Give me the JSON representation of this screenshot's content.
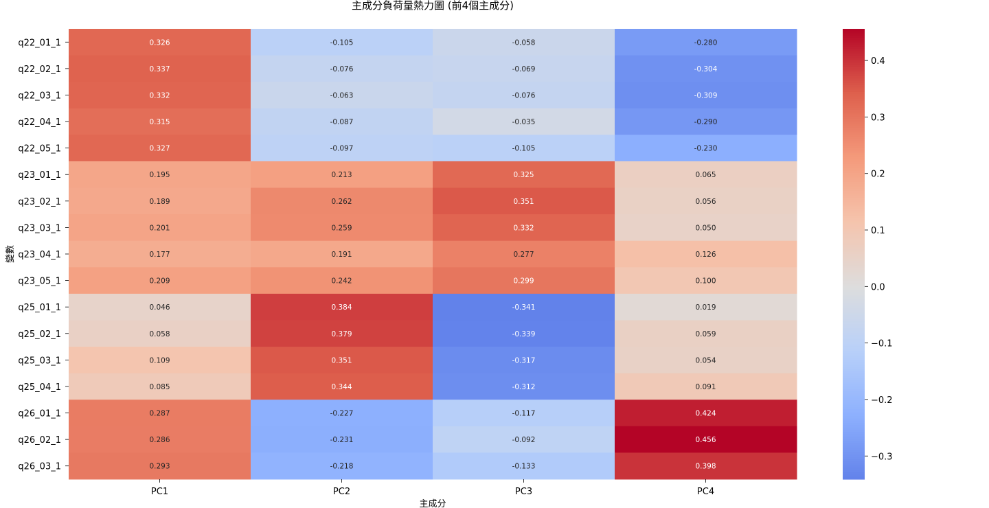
{
  "chart_data": {
    "type": "heatmap",
    "title": "主成分負荷量熱力圖 (前4個主成分)",
    "xlabel": "主成分",
    "ylabel": "變數",
    "x_categories": [
      "PC1",
      "PC2",
      "PC3",
      "PC4"
    ],
    "y_categories": [
      "q22_01_1",
      "q22_02_1",
      "q22_03_1",
      "q22_04_1",
      "q22_05_1",
      "q23_01_1",
      "q23_02_1",
      "q23_03_1",
      "q23_04_1",
      "q23_05_1",
      "q25_01_1",
      "q25_02_1",
      "q25_03_1",
      "q25_04_1",
      "q26_01_1",
      "q26_02_1",
      "q26_03_1"
    ],
    "values": [
      [
        0.326,
        -0.105,
        -0.058,
        -0.28
      ],
      [
        0.337,
        -0.076,
        -0.069,
        -0.304
      ],
      [
        0.332,
        -0.063,
        -0.076,
        -0.309
      ],
      [
        0.315,
        -0.087,
        -0.035,
        -0.29
      ],
      [
        0.327,
        -0.097,
        -0.105,
        -0.23
      ],
      [
        0.195,
        0.213,
        0.325,
        0.065
      ],
      [
        0.189,
        0.262,
        0.351,
        0.056
      ],
      [
        0.201,
        0.259,
        0.332,
        0.05
      ],
      [
        0.177,
        0.191,
        0.277,
        0.126
      ],
      [
        0.209,
        0.242,
        0.299,
        0.1
      ],
      [
        0.046,
        0.384,
        -0.341,
        0.019
      ],
      [
        0.058,
        0.379,
        -0.339,
        0.059
      ],
      [
        0.109,
        0.351,
        -0.317,
        0.054
      ],
      [
        0.085,
        0.344,
        -0.312,
        0.091
      ],
      [
        0.287,
        -0.227,
        -0.117,
        0.424
      ],
      [
        0.286,
        -0.231,
        -0.092,
        0.456
      ],
      [
        0.293,
        -0.218,
        -0.133,
        0.398
      ]
    ],
    "annotations_format": "0.000",
    "colormap": "coolwarm",
    "vmin": -0.341,
    "vmax": 0.456,
    "center": 0,
    "colorbar_ticks": [
      0.4,
      0.3,
      0.2,
      0.1,
      0.0,
      -0.1,
      -0.2,
      -0.3
    ],
    "colorbar_tick_labels": [
      "0.4",
      "0.3",
      "0.2",
      "0.1",
      "0.0",
      "−0.1",
      "−0.2",
      "−0.3"
    ]
  }
}
